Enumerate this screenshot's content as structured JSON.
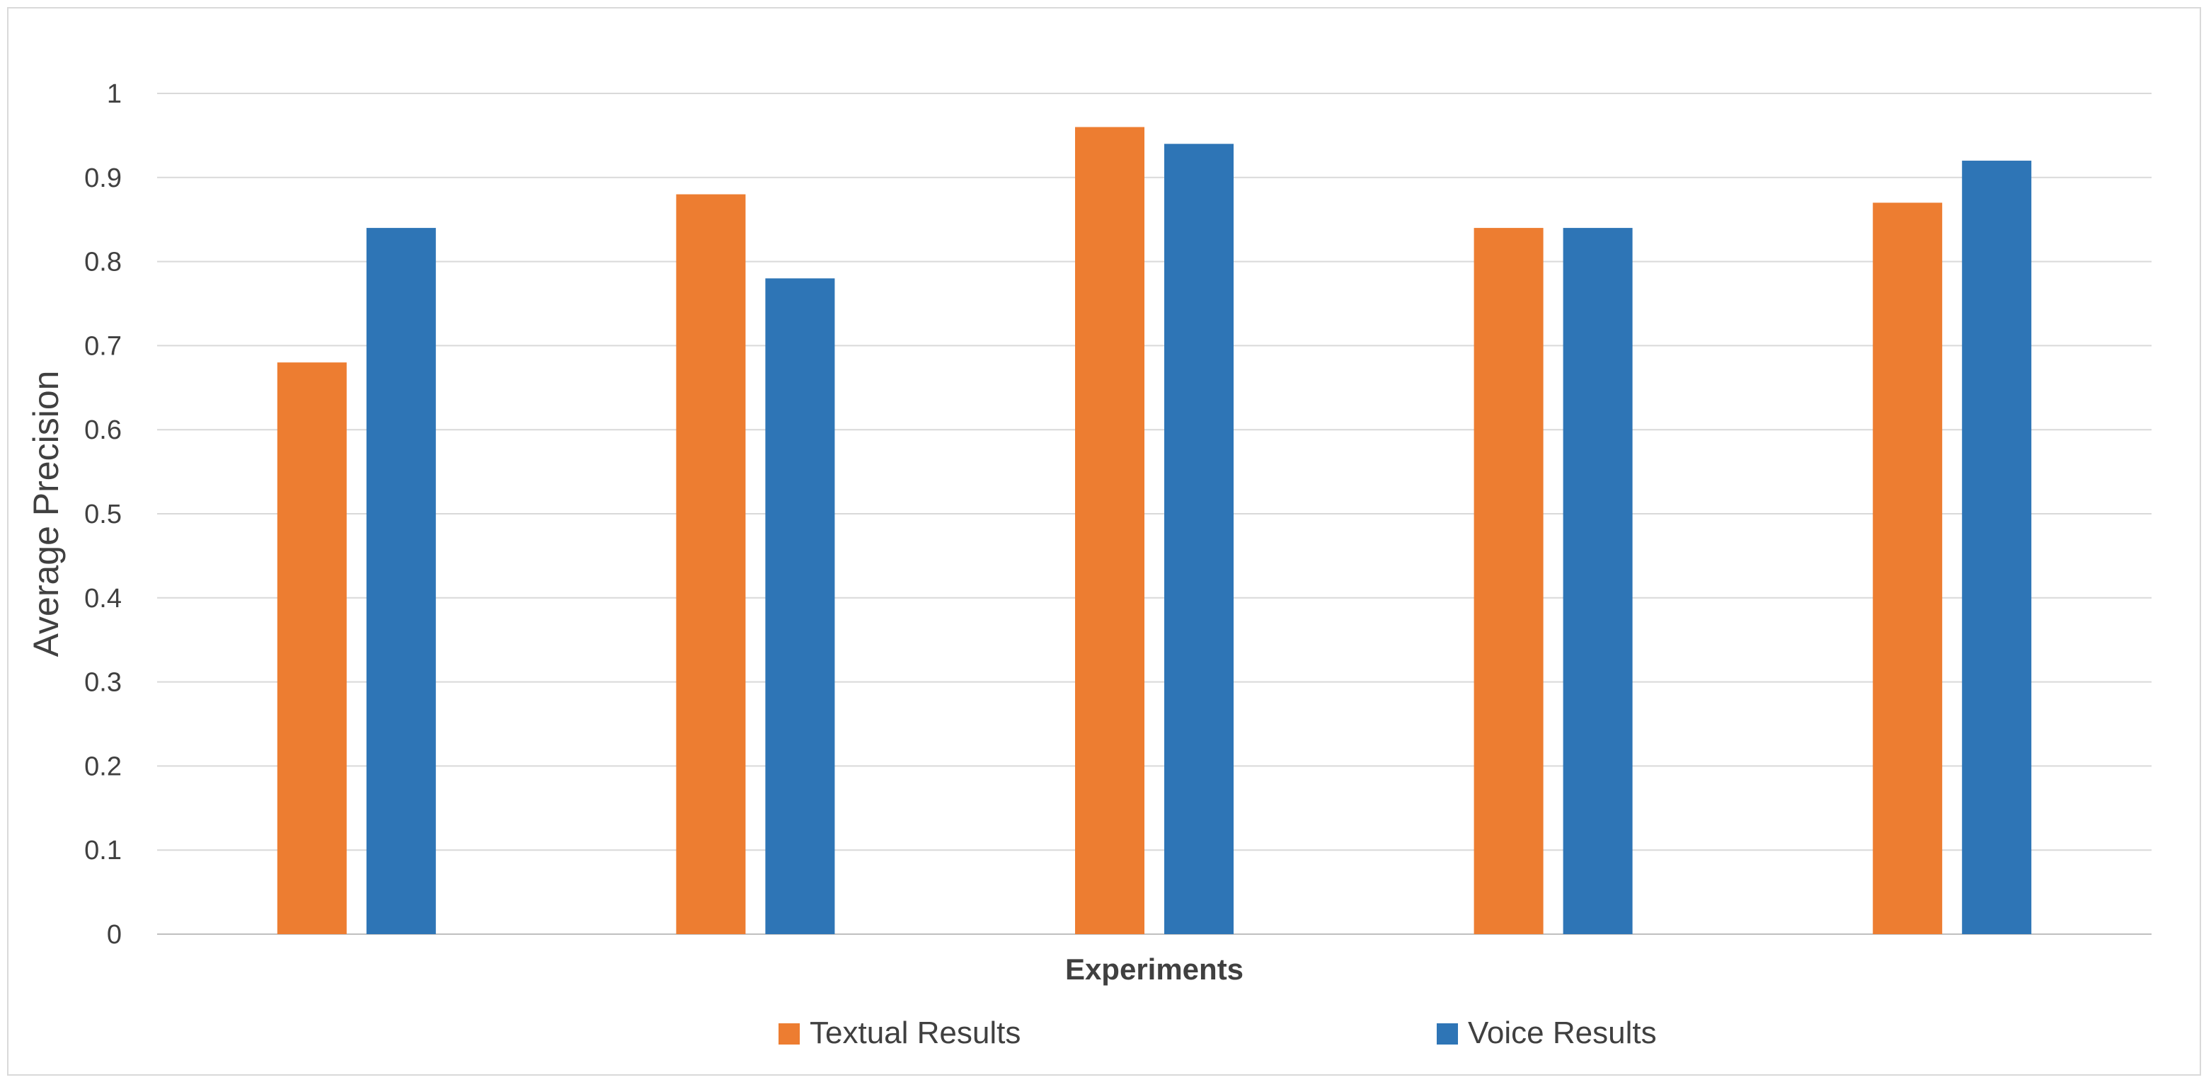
{
  "chart_data": {
    "type": "bar",
    "title": "",
    "xlabel": "Experiments",
    "ylabel": "Average Precision",
    "ylim": [
      0,
      1
    ],
    "yticks": [
      0,
      0.1,
      0.2,
      0.3,
      0.4,
      0.5,
      0.6,
      0.7,
      0.8,
      0.9,
      1
    ],
    "ytick_labels": [
      "0",
      "0.1",
      "0.2",
      "0.3",
      "0.4",
      "0.5",
      "0.6",
      "0.7",
      "0.8",
      "0.9",
      "1"
    ],
    "grid": true,
    "legend_position": "bottom",
    "categories": [
      "",
      "",
      "",
      "",
      ""
    ],
    "series": [
      {
        "name": "Textual Results",
        "color": "#ED7D31",
        "values": [
          0.68,
          0.88,
          0.96,
          0.84,
          0.87
        ]
      },
      {
        "name": "Voice Results",
        "color": "#2E75B6",
        "values": [
          0.84,
          0.78,
          0.94,
          0.84,
          0.92
        ]
      }
    ],
    "colors": {
      "gridline": "#d9d9d9",
      "axis": "#bfbfbf",
      "text": "#404040",
      "frame": "#d9d9d9"
    }
  }
}
